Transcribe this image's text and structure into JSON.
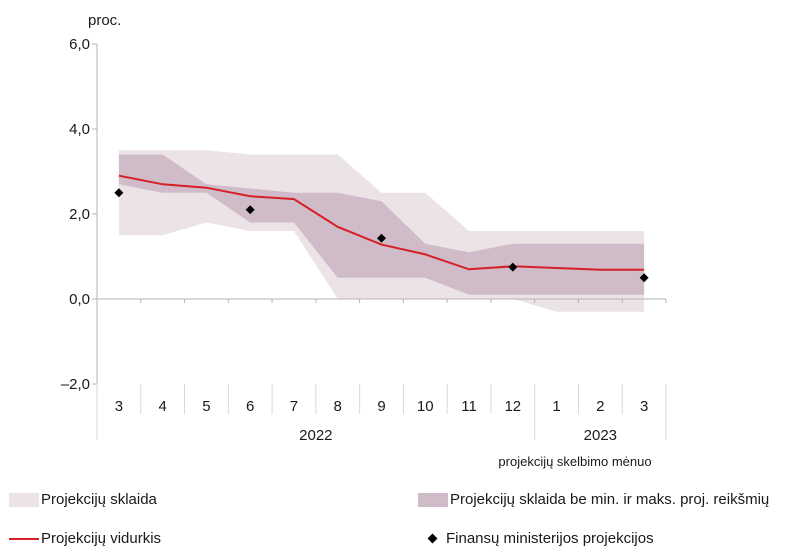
{
  "chart_data": {
    "type": "line",
    "ylabel": "proc.",
    "xlabel": "projekcijų skelbimo mėnuo",
    "ylim": [
      -2,
      6
    ],
    "yticks": [
      "–2,0",
      "0,0",
      "2,0",
      "4,0",
      "6,0"
    ],
    "ytick_values": [
      -2,
      0,
      2,
      4,
      6
    ],
    "categories": [
      "3",
      "4",
      "5",
      "6",
      "7",
      "8",
      "9",
      "10",
      "11",
      "12",
      "1",
      "2",
      "3"
    ],
    "year_groups": [
      {
        "label": "2022",
        "from": 0,
        "to": 9
      },
      {
        "label": "2023",
        "from": 10,
        "to": 12
      }
    ],
    "series": [
      {
        "name": "Projekcijų sklaida",
        "kind": "band",
        "color": "#ece3e7",
        "lower": [
          1.5,
          1.5,
          1.8,
          1.6,
          1.6,
          0.0,
          0.0,
          0.0,
          0.0,
          0.0,
          -0.3,
          -0.3,
          -0.3
        ],
        "upper": [
          3.5,
          3.5,
          3.5,
          3.4,
          3.4,
          3.4,
          2.5,
          2.5,
          1.6,
          1.6,
          1.6,
          1.6,
          1.6
        ]
      },
      {
        "name": "Projekcijų sklaida be min. ir maks. proj. reikšmių",
        "kind": "band",
        "color": "#cfbcc8",
        "lower": [
          2.7,
          2.5,
          2.5,
          1.8,
          1.8,
          0.5,
          0.5,
          0.5,
          0.1,
          0.1,
          0.1,
          0.1,
          0.1
        ],
        "upper": [
          3.4,
          3.4,
          2.7,
          2.6,
          2.5,
          2.5,
          2.3,
          1.3,
          1.1,
          1.3,
          1.3,
          1.3,
          1.3
        ]
      },
      {
        "name": "Projekcijų vidurkis",
        "kind": "line",
        "color": "#d62027",
        "values": [
          2.9,
          2.7,
          2.62,
          2.42,
          2.35,
          1.7,
          1.28,
          1.05,
          0.7,
          0.77,
          0.73,
          0.69,
          0.69
        ]
      },
      {
        "name": "Finansų ministerijos projekcijos",
        "kind": "points",
        "color": "#000000",
        "points": [
          {
            "index": 0,
            "value": 2.5
          },
          {
            "index": 3,
            "value": 2.1
          },
          {
            "index": 6,
            "value": 1.43
          },
          {
            "index": 9,
            "value": 0.75
          },
          {
            "index": 12,
            "value": 0.5
          }
        ]
      }
    ],
    "legend_position": "bottom"
  }
}
